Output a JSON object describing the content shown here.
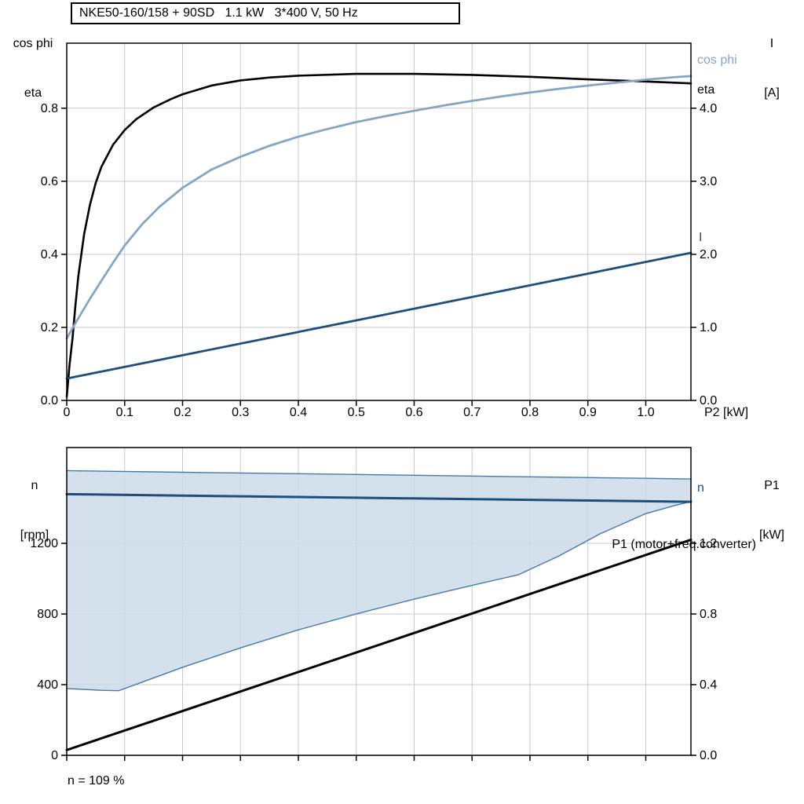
{
  "chart_data": [
    {
      "id": "top-chart",
      "type": "line",
      "title": "NKE50-160/158 + 90SD   1.1 kW   3*400 V, 50 Hz",
      "grid_color": "#c9c9c9",
      "x_axis": {
        "label": "P2 [kW]",
        "min": 0,
        "max": 1.078,
        "ticks": [
          {
            "v": 0,
            "label": "0"
          },
          {
            "v": 0.1,
            "label": "0.1"
          },
          {
            "v": 0.2,
            "label": "0.2"
          },
          {
            "v": 0.3,
            "label": "0.3"
          },
          {
            "v": 0.4,
            "label": "0.4"
          },
          {
            "v": 0.5,
            "label": "0.5"
          },
          {
            "v": 0.6,
            "label": "0.6"
          },
          {
            "v": 0.7,
            "label": "0.7"
          },
          {
            "v": 0.8,
            "label": "0.8"
          },
          {
            "v": 0.9,
            "label": "0.9"
          },
          {
            "v": 1.0,
            "label": "1.0"
          }
        ]
      },
      "y_left": {
        "label_lines": [
          "cos phi",
          "eta"
        ],
        "min": 0,
        "max": 0.978,
        "ticks": [
          {
            "v": 0,
            "label": "0.0"
          },
          {
            "v": 0.2,
            "label": "0.2"
          },
          {
            "v": 0.4,
            "label": "0.4"
          },
          {
            "v": 0.6,
            "label": "0.6"
          },
          {
            "v": 0.8,
            "label": "0.8"
          }
        ]
      },
      "y_right": {
        "label_lines": [
          "I",
          "[A]"
        ],
        "min": 0,
        "max": 4.89,
        "ticks": [
          {
            "v": 0,
            "label": "0.0"
          },
          {
            "v": 1,
            "label": "1.0"
          },
          {
            "v": 2,
            "label": "2.0"
          },
          {
            "v": 3,
            "label": "3.0"
          },
          {
            "v": 4,
            "label": "4.0"
          }
        ]
      },
      "series": [
        {
          "name": "eta",
          "axis": "left",
          "color": "#000000",
          "stroke_width": 2.6,
          "points": [
            [
              0,
              0.01
            ],
            [
              0.005,
              0.1
            ],
            [
              0.01,
              0.17
            ],
            [
              0.015,
              0.26
            ],
            [
              0.02,
              0.34
            ],
            [
              0.03,
              0.455
            ],
            [
              0.04,
              0.535
            ],
            [
              0.05,
              0.595
            ],
            [
              0.06,
              0.64
            ],
            [
              0.08,
              0.7
            ],
            [
              0.1,
              0.74
            ],
            [
              0.12,
              0.77
            ],
            [
              0.15,
              0.802
            ],
            [
              0.18,
              0.825
            ],
            [
              0.2,
              0.838
            ],
            [
              0.25,
              0.862
            ],
            [
              0.3,
              0.876
            ],
            [
              0.35,
              0.884
            ],
            [
              0.4,
              0.889
            ],
            [
              0.5,
              0.894
            ],
            [
              0.6,
              0.894
            ],
            [
              0.7,
              0.891
            ],
            [
              0.8,
              0.886
            ],
            [
              0.9,
              0.879
            ],
            [
              1.0,
              0.873
            ],
            [
              1.078,
              0.868
            ]
          ]
        },
        {
          "name": "cos phi",
          "axis": "left",
          "color": "#84a5c3",
          "stroke_width": 2.8,
          "points": [
            [
              0,
              0.17
            ],
            [
              0.02,
              0.225
            ],
            [
              0.04,
              0.278
            ],
            [
              0.06,
              0.328
            ],
            [
              0.08,
              0.377
            ],
            [
              0.1,
              0.424
            ],
            [
              0.13,
              0.482
            ],
            [
              0.16,
              0.53
            ],
            [
              0.2,
              0.582
            ],
            [
              0.25,
              0.632
            ],
            [
              0.3,
              0.667
            ],
            [
              0.35,
              0.697
            ],
            [
              0.4,
              0.722
            ],
            [
              0.45,
              0.743
            ],
            [
              0.5,
              0.762
            ],
            [
              0.55,
              0.778
            ],
            [
              0.6,
              0.793
            ],
            [
              0.65,
              0.807
            ],
            [
              0.7,
              0.82
            ],
            [
              0.75,
              0.832
            ],
            [
              0.8,
              0.843
            ],
            [
              0.85,
              0.853
            ],
            [
              0.9,
              0.862
            ],
            [
              0.95,
              0.87
            ],
            [
              1.0,
              0.878
            ],
            [
              1.05,
              0.885
            ],
            [
              1.078,
              0.888
            ]
          ]
        },
        {
          "name": "I",
          "axis": "right",
          "color": "#1d4f7c",
          "stroke_width": 2.8,
          "points": [
            [
              0,
              0.3
            ],
            [
              0.54,
              1.16
            ],
            [
              1.078,
              2.02
            ]
          ]
        }
      ]
    },
    {
      "id": "bottom-chart",
      "type": "line",
      "grid_color": "#c9c9c9",
      "footnote": "n = 109 %",
      "x_axis": {
        "min": 0,
        "max": 1.078,
        "ticks": [
          {
            "v": 0
          },
          {
            "v": 0.1
          },
          {
            "v": 0.2
          },
          {
            "v": 0.3
          },
          {
            "v": 0.4
          },
          {
            "v": 0.5
          },
          {
            "v": 0.6
          },
          {
            "v": 0.7
          },
          {
            "v": 0.8
          },
          {
            "v": 0.9
          },
          {
            "v": 1.0
          }
        ]
      },
      "y_left": {
        "label_lines": [
          "n",
          "[rpm]"
        ],
        "min": 0,
        "max": 1742,
        "ticks": [
          {
            "v": 0,
            "label": "0"
          },
          {
            "v": 400,
            "label": "400"
          },
          {
            "v": 800,
            "label": "800"
          },
          {
            "v": 1200,
            "label": "1200"
          }
        ]
      },
      "y_right": {
        "label_lines": [
          "P1",
          "[kW]"
        ],
        "min": 0,
        "max": 1.742,
        "ticks": [
          {
            "v": 0,
            "label": "0.0"
          },
          {
            "v": 0.4,
            "label": "0.4"
          },
          {
            "v": 0.8,
            "label": "0.8"
          },
          {
            "v": 1.2,
            "label": "1.2"
          }
        ]
      },
      "band": {
        "upper": "n max",
        "lower": "n min",
        "fill": "#cddbe9",
        "opacity": 0.85
      },
      "series": [
        {
          "name": "n max",
          "axis": "left",
          "color": "#4779a8",
          "stroke_width": 1.4,
          "points": [
            [
              0,
              1611
            ],
            [
              0.2,
              1602
            ],
            [
              0.4,
              1594
            ],
            [
              0.6,
              1585
            ],
            [
              0.8,
              1576
            ],
            [
              1.0,
              1568
            ],
            [
              1.078,
              1564
            ]
          ]
        },
        {
          "name": "n min",
          "axis": "left",
          "color": "#4779a8",
          "stroke_width": 1.4,
          "points": [
            [
              0,
              378
            ],
            [
              0.06,
              368
            ],
            [
              0.09,
              366
            ],
            [
              0.12,
              402
            ],
            [
              0.2,
              498
            ],
            [
              0.3,
              608
            ],
            [
              0.4,
              710
            ],
            [
              0.5,
              800
            ],
            [
              0.6,
              884
            ],
            [
              0.7,
              962
            ],
            [
              0.78,
              1022
            ],
            [
              0.85,
              1128
            ],
            [
              0.92,
              1252
            ],
            [
              1.0,
              1368
            ],
            [
              1.05,
              1414
            ],
            [
              1.078,
              1436
            ]
          ]
        },
        {
          "name": "n",
          "axis": "left",
          "color": "#1d4f7c",
          "stroke_width": 3,
          "points": [
            [
              0,
              1478
            ],
            [
              0.2,
              1470
            ],
            [
              0.4,
              1462
            ],
            [
              0.6,
              1454
            ],
            [
              0.8,
              1446
            ],
            [
              1.0,
              1438
            ],
            [
              1.078,
              1435
            ]
          ]
        },
        {
          "name": "P1 (motor+freq.converter)",
          "axis": "right",
          "color": "#000000",
          "stroke_width": 3,
          "points": [
            [
              0,
              0.03
            ],
            [
              1.078,
              1.22
            ]
          ]
        }
      ]
    }
  ]
}
